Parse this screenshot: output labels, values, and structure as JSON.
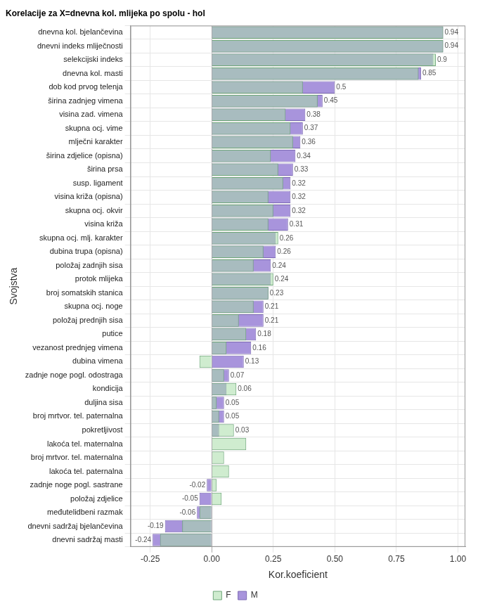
{
  "chart_data": {
    "type": "bar",
    "orientation": "horizontal",
    "title": "Korelacije za X=dnevna kol. mlijeka po spolu - hol",
    "x_label": "Kor.koeficient",
    "y_label": "Svojstva",
    "categories": [
      "dnevna kol. bjelančevina",
      "dnevni indeks mliječnosti",
      "selekcijski indeks",
      "dnevna kol. masti",
      "dob kod prvog telenja",
      "širina zadnjeg vimena",
      "visina zad. vimena",
      "skupna ocj. vime",
      "mlječni karakter",
      "širina zdjelice (opisna)",
      "širina prsa",
      "susp. ligament",
      "visina križa (opisna)",
      "skupna ocj. okvir",
      "visina križa",
      "skupna ocj. mlj. karakter",
      "dubina trupa (opisna)",
      "položaj zadnjih sisa",
      "protok mlijeka",
      "broj somatskih stanica",
      "skupna ocj. noge",
      "položaj prednjih sisa",
      "putice",
      "vezanost prednjeg vimena",
      "dubina vimena",
      "zadnje noge pogl. odostraga",
      "kondicija",
      "duljina sisa",
      "broj mrtvor. tel. paternalna",
      "pokretljivost",
      "lakoća tel. maternalna",
      "broj mrtvor. tel. maternalna",
      "lakoća tel. paternalna",
      "zadnje noge pogl. sastrane",
      "položaj zdjelice",
      "međutelidbeni razmak",
      "dnevni sadržaj bjelančevina",
      "dnevni sadržaj masti"
    ],
    "series": [
      {
        "name": "M",
        "color": "#a894dc",
        "data_labels": true,
        "values": [
          0.94,
          0.94,
          0.9,
          0.85,
          0.5,
          0.45,
          0.38,
          0.37,
          0.36,
          0.34,
          0.33,
          0.32,
          0.32,
          0.32,
          0.31,
          0.26,
          0.26,
          0.24,
          0.24,
          0.23,
          0.21,
          0.21,
          0.18,
          0.16,
          0.13,
          0.07,
          0.06,
          0.05,
          0.05,
          0.03,
          null,
          null,
          null,
          -0.02,
          -0.05,
          -0.06,
          -0.19,
          -0.24
        ]
      },
      {
        "name": "F",
        "color": "#a8dca8",
        "values": [
          0.94,
          0.94,
          0.91,
          0.84,
          0.37,
          0.43,
          0.3,
          0.32,
          0.33,
          0.24,
          0.27,
          0.29,
          0.23,
          0.25,
          0.23,
          0.27,
          0.21,
          0.17,
          0.25,
          0.23,
          0.17,
          0.11,
          0.14,
          0.06,
          -0.05,
          0.05,
          0.1,
          0.02,
          0.03,
          0.09,
          0.14,
          0.05,
          0.07,
          0.02,
          0.04,
          -0.05,
          -0.12,
          -0.21
        ]
      }
    ],
    "xlim": [
      -0.33,
      1.03
    ],
    "xticks": [
      -0.25,
      {
        "value": 0,
        "label": "0.00"
      },
      0.25,
      {
        "value": 0.5,
        "label": "0.50"
      },
      0.75,
      {
        "value": 1,
        "label": "1.00"
      }
    ],
    "grid": true,
    "legend": "bottom"
  }
}
